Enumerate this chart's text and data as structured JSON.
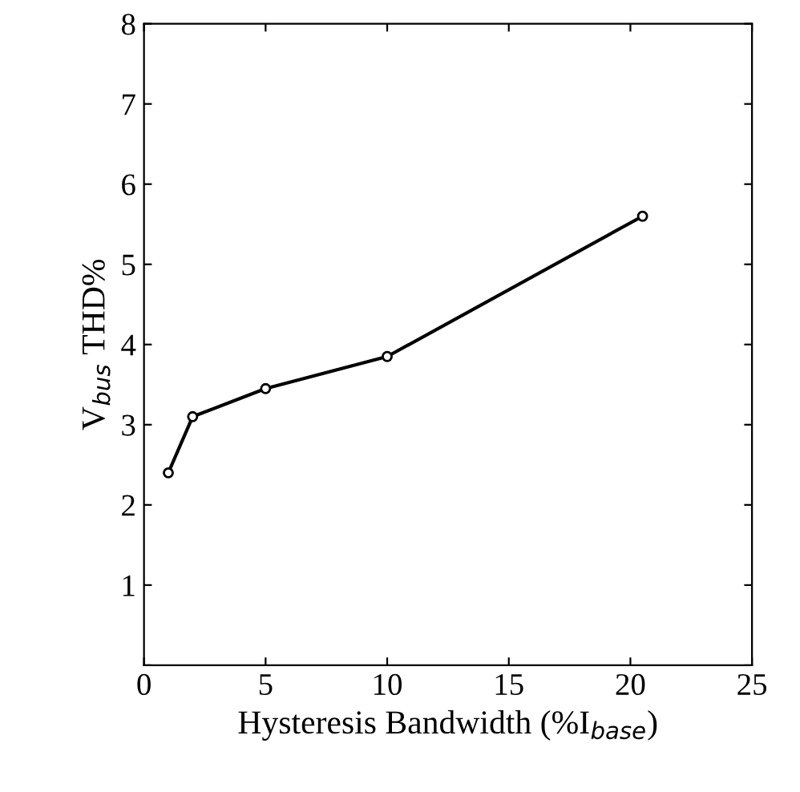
{
  "chart_data": {
    "type": "line",
    "xlabel": "Hysteresis Bandwidth (%I$_{base}$)",
    "ylabel": "V$_{bus}$ THD%",
    "x": [
      1,
      2,
      5,
      10,
      20.5
    ],
    "series": [
      {
        "color": "#000000",
        "values": [
          2.4,
          3.1,
          3.45,
          3.85,
          5.6
        ]
      }
    ],
    "xlim": [
      0,
      25
    ],
    "ylim": [
      0,
      8
    ],
    "xticks": [
      0,
      5,
      10,
      15,
      20,
      25
    ],
    "yticks": [
      {
        "value": 0,
        "label": null
      },
      1,
      2,
      3,
      4,
      5,
      6,
      7,
      8
    ],
    "marker": "circle",
    "line_style": "solid",
    "grid": false
  }
}
